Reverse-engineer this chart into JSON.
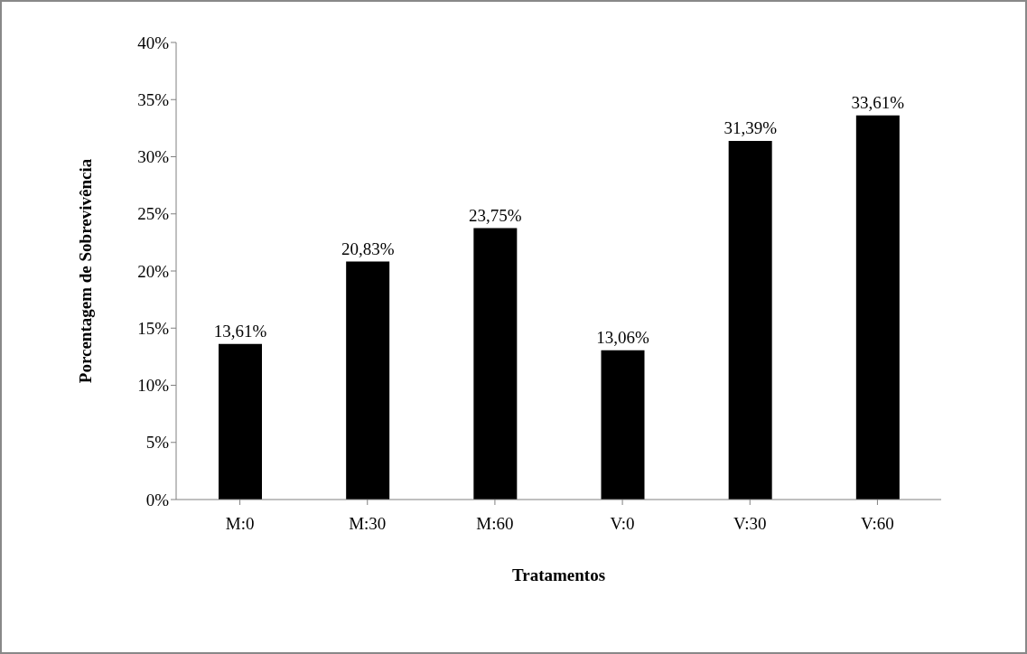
{
  "chart_data": {
    "type": "bar",
    "xlabel": "Tratamentos",
    "ylabel": "Porcentagem de Sobrevivência",
    "categories": [
      "M:0",
      "M:30",
      "M:60",
      "V:0",
      "V:30",
      "V:60"
    ],
    "values": [
      13.61,
      20.83,
      23.75,
      13.06,
      31.39,
      33.61
    ],
    "value_labels": [
      "13,61%",
      "20,83%",
      "23,75%",
      "13,06%",
      "31,39%",
      "33,61%"
    ],
    "color": "#000000",
    "ylim": [
      0,
      40
    ],
    "yticks": [
      {
        "value": 0,
        "label": "0%"
      },
      {
        "value": 5,
        "label": "5%"
      },
      {
        "value": 10,
        "label": "10%"
      },
      {
        "value": 15,
        "label": "15%"
      },
      {
        "value": 20,
        "label": "20%"
      },
      {
        "value": 25,
        "label": "25%"
      },
      {
        "value": 30,
        "label": "30%"
      },
      {
        "value": 35,
        "label": "35%"
      },
      {
        "value": 40,
        "label": "40%"
      }
    ],
    "grid": false,
    "legend": false
  }
}
